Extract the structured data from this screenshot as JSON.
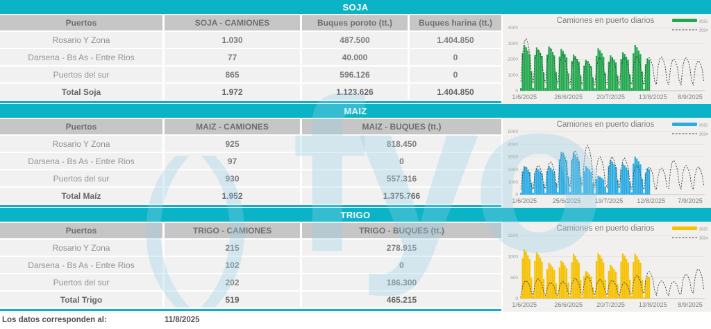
{
  "watermark": {
    "symbol": "()",
    "text": "fyo"
  },
  "footer": {
    "label": "Los datos corresponden al:",
    "date": "11/8/2025"
  },
  "sections": [
    {
      "band_title": "SOJA",
      "table": {
        "headers": [
          "Puertos",
          "SOJA - CAMIONES",
          "Buques poroto (tt.)",
          "Buques harina (tt.)"
        ],
        "rows": [
          [
            "Rosario Y Zona",
            "1.030",
            "487.500",
            "1.404.850"
          ],
          [
            "Darsena - Bs As - Entre Rios",
            "77",
            "40.000",
            "0"
          ],
          [
            "Puertos del sur",
            "865",
            "596.126",
            "0"
          ]
        ],
        "total": [
          "Total Soja",
          "1.972",
          "1.123.626",
          "1.404.850"
        ]
      }
    },
    {
      "band_title": "MAIZ",
      "table": {
        "headers": [
          "Puertos",
          "MAIZ - CAMIONES",
          "MAIZ - BUQUES (tt.)"
        ],
        "rows": [
          [
            "Rosario Y Zona",
            "925",
            "818.450"
          ],
          [
            "Darsena - Bs As - Entre Rios",
            "97",
            "0"
          ],
          [
            "Puertos del sur",
            "930",
            "557.316"
          ]
        ],
        "total": [
          "Total Maíz",
          "1.952",
          "1.375.766"
        ]
      }
    },
    {
      "band_title": "TRIGO",
      "table": {
        "headers": [
          "Puertos",
          "TRIGO - CAMIONES",
          "TRIGO - BUQUES (tt.)"
        ],
        "rows": [
          [
            "Rosario Y Zona",
            "215",
            "278.915"
          ],
          [
            "Darsena - Bs As - Entre Rios",
            "102",
            "0"
          ],
          [
            "Puertos del sur",
            "202",
            "186.300"
          ]
        ],
        "total": [
          "Total Trigo",
          "519",
          "465.215"
        ]
      }
    }
  ],
  "chart_data": [
    {
      "type": "bar",
      "title": "Camiones en puerto diarios",
      "bar_color": "#21a84d",
      "line_color": "#3f3f3f",
      "legend": [
        "2025",
        "2024"
      ],
      "ylim": [
        0,
        4000
      ],
      "yticks": [
        0,
        1000,
        2000,
        3000,
        4000
      ],
      "x_tick_labels": [
        "1/6/2025",
        "26/6/2025",
        "20/7/2025",
        "13/8/2025",
        "8/9/2025"
      ],
      "x_tick_day_index": [
        0,
        25,
        49,
        73,
        99
      ],
      "n_days": 105,
      "series": [
        {
          "name": "2025",
          "type": "bar",
          "values": [
            170,
            2380,
            2900,
            2760,
            2550,
            2320,
            1220,
            170,
            2260,
            2750,
            2610,
            2420,
            2200,
            1160,
            170,
            2300,
            2800,
            2660,
            2460,
            2240,
            1180,
            160,
            2170,
            2650,
            2520,
            2330,
            2120,
            1110,
            140,
            1890,
            2300,
            2190,
            2020,
            1840,
            970,
            120,
            1600,
            1950,
            1850,
            1720,
            1560,
            820,
            160,
            2210,
            2700,
            2570,
            2380,
            2160,
            1130,
            140,
            1850,
            2250,
            2140,
            1980,
            1800,
            950,
            150,
            2010,
            2450,
            2330,
            2160,
            1960,
            1030,
            170,
            2380,
            2900,
            2760,
            2550,
            2320,
            1220,
            120,
            1680,
            2050,
            1950
          ]
        },
        {
          "name": "2024",
          "type": "line",
          "values": [
            590,
            2380,
            3140,
            3300,
            2970,
            2380,
            990,
            470,
            1870,
            2470,
            2600,
            2340,
            1870,
            780,
            490,
            1940,
            2570,
            2700,
            2430,
            1940,
            810,
            410,
            1660,
            2190,
            2300,
            2070,
            1660,
            690,
            380,
            1510,
            2000,
            2100,
            1890,
            1510,
            630,
            340,
            1370,
            1810,
            1900,
            1710,
            1370,
            570,
            380,
            1510,
            2000,
            2100,
            1890,
            1510,
            630,
            360,
            1440,
            1900,
            2000,
            1800,
            1440,
            600,
            380,
            1510,
            2000,
            2100,
            1890,
            1510,
            630,
            400,
            1580,
            2090,
            2200,
            1980,
            1580,
            660,
            380,
            1510,
            2000,
            2100,
            1890,
            1510,
            630,
            390,
            1550,
            2040,
            2150,
            1940,
            1550,
            650,
            360,
            1440,
            1900,
            2000,
            1800,
            1440,
            600,
            380,
            1510,
            2000,
            2100,
            1890,
            1510,
            630,
            340,
            1370,
            1810,
            1900,
            1710,
            1370,
            570
          ]
        }
      ]
    },
    {
      "type": "bar",
      "title": "Camiones en puerto diarios",
      "bar_color": "#2aabe2",
      "line_color": "#3f3f3f",
      "legend": [
        "2025",
        "2024"
      ],
      "ylim": [
        0,
        5000
      ],
      "yticks": [
        0,
        1000,
        2000,
        3000,
        4000,
        5000
      ],
      "x_tick_labels": [
        "1/6/2025",
        "25/6/2025",
        "19/7/2025",
        "12/8/2025",
        "7/9/2025"
      ],
      "x_tick_day_index": [
        0,
        24,
        48,
        72,
        98
      ],
      "n_days": 105,
      "series": [
        {
          "name": "2025",
          "type": "bar",
          "values": [
            140,
            1850,
            2250,
            2140,
            1980,
            1800,
            950,
            130,
            1720,
            2100,
            2000,
            1850,
            1680,
            880,
            140,
            1850,
            2250,
            2140,
            1980,
            1800,
            950,
            200,
            2790,
            3400,
            3230,
            2990,
            2720,
            1430,
            200,
            2750,
            3350,
            3180,
            2950,
            2680,
            1410,
            140,
            1850,
            2250,
            2140,
            1980,
            1800,
            950,
            90,
            1230,
            1500,
            1430,
            1320,
            1200,
            630,
            170,
            2260,
            2750,
            2610,
            2420,
            2200,
            1160,
            150,
            2010,
            2450,
            2330,
            2160,
            1960,
            1030,
            180,
            2460,
            3000,
            2850,
            2640,
            2400,
            1260,
            130,
            1720,
            2100,
            2000
          ]
        },
        {
          "name": "2024",
          "type": "line",
          "values": [
            400,
            1580,
            2090,
            2200,
            1980,
            1580,
            660,
            410,
            1660,
            2190,
            2300,
            2070,
            1660,
            690,
            470,
            1870,
            2470,
            2600,
            2340,
            1870,
            780,
            590,
            2380,
            3140,
            3300,
            2970,
            2380,
            990,
            630,
            2520,
            3330,
            3500,
            3150,
            2520,
            1050,
            700,
            2810,
            3710,
            3900,
            3510,
            2810,
            1170,
            540,
            2160,
            2850,
            3000,
            2700,
            2160,
            900,
            540,
            2160,
            2850,
            3000,
            2700,
            2160,
            900,
            520,
            2090,
            2760,
            2900,
            2610,
            2090,
            870,
            410,
            1660,
            2190,
            2300,
            2070,
            1660,
            690,
            400,
            1580,
            2090,
            2200,
            1980,
            1580,
            660,
            380,
            1510,
            2000,
            2100,
            1890,
            1510,
            630,
            490,
            1940,
            2570,
            2700,
            2430,
            1940,
            810,
            410,
            1660,
            2190,
            2300,
            2070,
            1660,
            690,
            400,
            1580,
            2090,
            2200,
            1980,
            1580,
            660
          ]
        }
      ]
    },
    {
      "type": "bar",
      "title": "Camiones en puerto diarios",
      "bar_color": "#f6c100",
      "line_color": "#3f3f3f",
      "legend": [
        "2025",
        "2024"
      ],
      "ylim": [
        0,
        1500
      ],
      "yticks": [
        0,
        500,
        1000,
        1500
      ],
      "x_tick_labels": [
        "1/6/2025",
        "26/6/2025",
        "20/7/2025",
        "13/8/2025",
        "8/9/2025"
      ],
      "x_tick_day_index": [
        0,
        25,
        49,
        73,
        99
      ],
      "n_days": 105,
      "series": [
        {
          "name": "2025",
          "type": "bar",
          "values": [
            70,
            960,
            1170,
            1110,
            1030,
            940,
            490,
            70,
            900,
            1100,
            1050,
            970,
            880,
            460,
            50,
            700,
            850,
            810,
            750,
            680,
            360,
            50,
            740,
            900,
            860,
            790,
            720,
            380,
            60,
            870,
            1060,
            1010,
            930,
            850,
            450,
            40,
            530,
            650,
            620,
            570,
            520,
            270,
            60,
            890,
            1080,
            1030,
            950,
            860,
            450,
            50,
            660,
            800,
            760,
            700,
            640,
            340,
            60,
            880,
            1070,
            1020,
            940,
            860,
            450,
            60,
            870,
            1060,
            1010,
            930,
            850,
            450,
            30,
            440,
            540,
            510
          ]
        },
        {
          "name": "2024",
          "type": "line",
          "values": [
            80,
            300,
            400,
            420,
            380,
            300,
            130,
            80,
            340,
            450,
            470,
            420,
            340,
            140,
            70,
            270,
            360,
            380,
            340,
            270,
            110,
            70,
            290,
            380,
            400,
            360,
            290,
            120,
            90,
            350,
            460,
            480,
            430,
            350,
            140,
            90,
            370,
            490,
            520,
            470,
            370,
            160,
            80,
            320,
            430,
            450,
            410,
            320,
            140,
            80,
            310,
            410,
            430,
            390,
            310,
            130,
            70,
            270,
            360,
            380,
            340,
            270,
            110,
            100,
            400,
            520,
            550,
            500,
            400,
            170,
            120,
            460,
            610,
            640,
            580,
            460,
            190,
            80,
            300,
            400,
            420,
            380,
            300,
            130,
            70,
            290,
            380,
            400,
            360,
            290,
            120,
            100,
            420,
            550,
            580,
            520,
            420,
            170,
            130,
            500,
            670,
            700,
            630,
            500,
            210
          ]
        }
      ]
    }
  ]
}
